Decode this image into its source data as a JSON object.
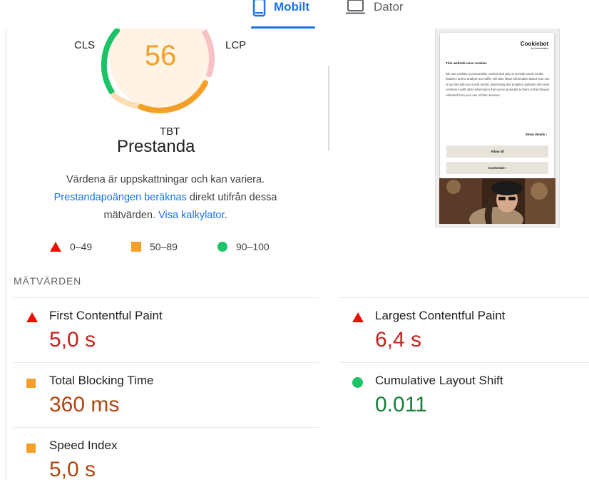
{
  "tabs": [
    {
      "label": "Mobilt",
      "icon": "phone-icon",
      "active": true
    },
    {
      "label": "Dator",
      "icon": "laptop-icon",
      "active": false
    }
  ],
  "gauge": {
    "score": "56",
    "labels": {
      "cls": "CLS",
      "lcp": "LCP",
      "tbt": "TBT"
    },
    "title": "Prestanda"
  },
  "explanation": {
    "line1": "Värdena är uppskattningar och kan variera.",
    "link1": "Prestandapoängen beräknas",
    "mid": " direkt utifrån dessa mätvärden. ",
    "link2": "Visa kalkylator",
    "end": "."
  },
  "legend": [
    {
      "range": "0–49",
      "shape": "triangle",
      "color": "#eb0f00"
    },
    {
      "range": "50–89",
      "shape": "square",
      "color": "#f4a028"
    },
    {
      "range": "90–100",
      "shape": "circle",
      "color": "#1bc466"
    }
  ],
  "metrics_section": {
    "title": "MÄTVÄRDEN",
    "items": [
      {
        "name": "First Contentful Paint",
        "value": "5,0 s",
        "rating": "poor"
      },
      {
        "name": "Largest Contentful Paint",
        "value": "6,4 s",
        "rating": "poor"
      },
      {
        "name": "Total Blocking Time",
        "value": "360 ms",
        "rating": "average"
      },
      {
        "name": "Cumulative Layout Shift",
        "value": "0.011",
        "rating": "good"
      },
      {
        "name": "Speed Index",
        "value": "5,0 s",
        "rating": "average"
      }
    ]
  },
  "screenshot": {
    "logo": "Cookiebot",
    "logo_sub": "by Usercentrics",
    "heading": "This website uses cookies",
    "body": "We use cookies to personalise content and ads, to provide social media features and to analyse our traffic. We also share information about your use of our site with our social media, advertising and analytics partners who may combine it with other information that you've provided to them or that they've collected from your use of their services.",
    "show_details": "Show details",
    "allow_all": "Allow all",
    "customize": "Customize"
  },
  "colors": {
    "accent": "#1a73e8",
    "poor": "#eb0f00",
    "average": "#f4a028",
    "good": "#1bc466"
  }
}
